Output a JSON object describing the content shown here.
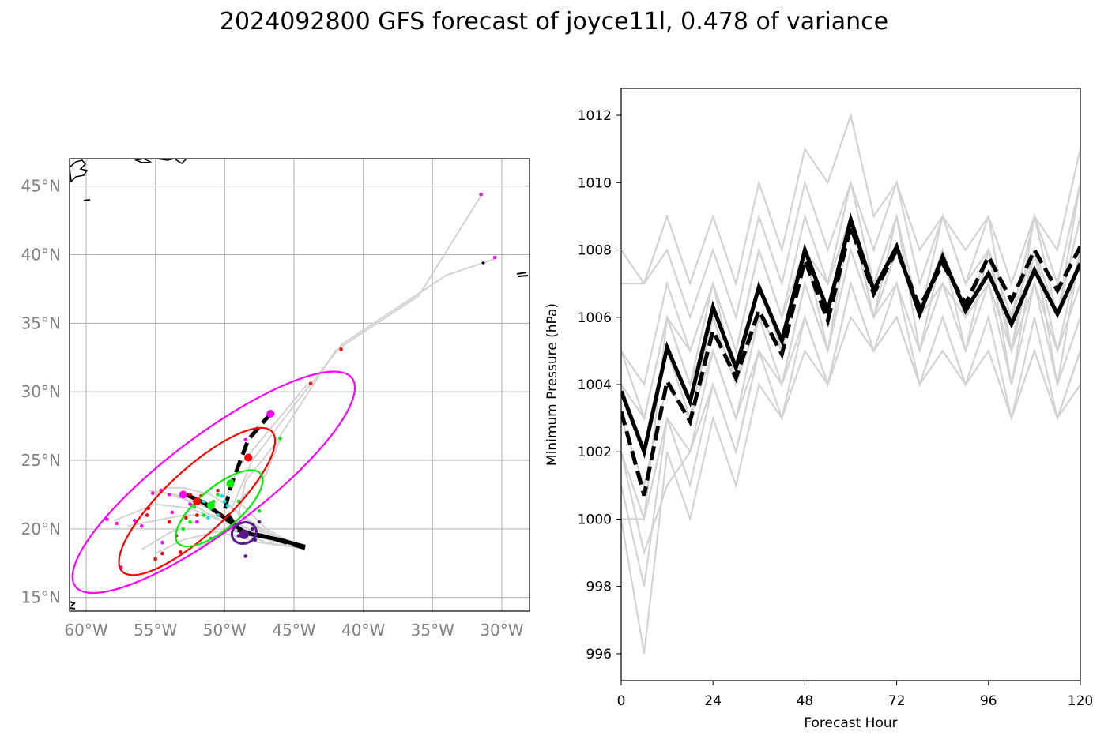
{
  "figure": {
    "title": "2024092800 GFS forecast of joyce11l, 0.478 of variance"
  },
  "chart_data": [
    {
      "type": "scatter",
      "panel": "track-map",
      "title": "",
      "xlabel": "",
      "ylabel": "",
      "xlim": [
        -61.2,
        -28.0
      ],
      "ylim": [
        14.0,
        47.0
      ],
      "xticks": [
        -60,
        -55,
        -50,
        -45,
        -40,
        -35,
        -30
      ],
      "xtick_labels": [
        "60°W",
        "55°W",
        "50°W",
        "45°W",
        "40°W",
        "35°W",
        "30°W"
      ],
      "yticks": [
        15,
        20,
        25,
        30,
        35,
        40,
        45
      ],
      "ytick_labels": [
        "15°N",
        "20°N",
        "25°N",
        "30°N",
        "35°N",
        "40°N",
        "45°N"
      ],
      "grid": true,
      "colors": {
        "ensemble": "#d3d3d3",
        "mean_track": "#000000",
        "ellipse_outer": "#ff00ff",
        "ellipse_mid": "#ff0000",
        "ellipse_inner": "#00ee00",
        "ellipse_start": "#5b1a8c",
        "points_cyan": "#00e5e5",
        "grid": "#b0b0b0",
        "tick_text": "#808080"
      },
      "ensemble_tracks": [
        [
          [
            -44.5,
            18.6
          ],
          [
            -47.0,
            19.3
          ],
          [
            -49.5,
            20.6
          ],
          [
            -52.0,
            21.9
          ],
          [
            -54.0,
            22.5
          ]
        ],
        [
          [
            -44.5,
            18.6
          ],
          [
            -47.5,
            19.5
          ],
          [
            -50.0,
            21.0
          ],
          [
            -53.0,
            21.0
          ],
          [
            -55.5,
            20.5
          ],
          [
            -57.0,
            20.2
          ]
        ],
        [
          [
            -44.5,
            18.6
          ],
          [
            -47.0,
            19.8
          ],
          [
            -49.5,
            21.5
          ],
          [
            -51.0,
            22.5
          ],
          [
            -53.0,
            23.0
          ],
          [
            -54.5,
            23.0
          ]
        ],
        [
          [
            -44.5,
            18.6
          ],
          [
            -47.0,
            19.5
          ],
          [
            -49.0,
            21.0
          ],
          [
            -48.5,
            23.5
          ],
          [
            -46.5,
            26.0
          ],
          [
            -42.0,
            33.0
          ],
          [
            -36.0,
            37.0
          ],
          [
            -31.5,
            44.3
          ]
        ],
        [
          [
            -44.5,
            18.6
          ],
          [
            -47.0,
            19.5
          ],
          [
            -49.5,
            21.5
          ],
          [
            -48.0,
            25.0
          ],
          [
            -45.0,
            29.0
          ],
          [
            -41.5,
            33.5
          ],
          [
            -34.0,
            38.5
          ],
          [
            -30.5,
            39.7
          ]
        ],
        [
          [
            -44.5,
            18.6
          ],
          [
            -47.5,
            19.0
          ],
          [
            -50.5,
            19.8
          ],
          [
            -53.0,
            19.2
          ],
          [
            -55.0,
            18.2
          ]
        ],
        [
          [
            -44.5,
            18.6
          ],
          [
            -47.5,
            19.8
          ],
          [
            -50.0,
            20.5
          ],
          [
            -52.5,
            21.5
          ],
          [
            -55.0,
            21.8
          ],
          [
            -58.0,
            20.6
          ]
        ],
        [
          [
            -44.5,
            18.6
          ],
          [
            -47.0,
            20.0
          ],
          [
            -49.0,
            22.0
          ],
          [
            -47.0,
            24.0
          ],
          [
            -46.0,
            26.5
          ]
        ],
        [
          [
            -44.5,
            18.6
          ],
          [
            -47.5,
            19.5
          ],
          [
            -50.5,
            20.0
          ],
          [
            -53.5,
            20.0
          ],
          [
            -56.0,
            18.5
          ]
        ],
        [
          [
            -44.5,
            18.6
          ],
          [
            -48.0,
            19.5
          ],
          [
            -51.0,
            21.0
          ],
          [
            -53.5,
            22.5
          ],
          [
            -55.5,
            22.8
          ]
        ],
        [
          [
            -44.5,
            18.6
          ],
          [
            -47.0,
            19.0
          ],
          [
            -49.5,
            20.0
          ],
          [
            -51.0,
            19.2
          ],
          [
            -52.0,
            18.5
          ]
        ],
        [
          [
            -44.5,
            18.6
          ],
          [
            -47.5,
            20.0
          ],
          [
            -50.0,
            22.0
          ],
          [
            -49.0,
            24.5
          ],
          [
            -44.0,
            30.6
          ]
        ]
      ],
      "mean_tracks": [
        {
          "style": "solid",
          "points": [
            [
              -44.2,
              18.7
            ],
            [
              -46.0,
              19.2
            ],
            [
              -48.5,
              19.7
            ],
            [
              -50.0,
              20.8
            ],
            [
              -51.5,
              21.9
            ],
            [
              -53.0,
              22.6
            ]
          ]
        },
        {
          "style": "dashed",
          "points": [
            [
              -44.2,
              18.6
            ],
            [
              -46.5,
              19.3
            ],
            [
              -49.0,
              19.9
            ],
            [
              -50.0,
              21.4
            ],
            [
              -49.5,
              23.3
            ],
            [
              -48.3,
              26.5
            ],
            [
              -46.7,
              28.4
            ]
          ]
        }
      ],
      "ellipses": [
        {
          "name": "magenta",
          "cx": -50.8,
          "cy": 23.4,
          "rx": 12.5,
          "ry": 3.4,
          "angle": 37
        },
        {
          "name": "red",
          "cx": -52.0,
          "cy": 22.0,
          "rx": 7.4,
          "ry": 2.3,
          "angle": 43
        },
        {
          "name": "green",
          "cx": -50.4,
          "cy": 21.5,
          "rx": 3.9,
          "ry": 1.5,
          "angle": 40
        },
        {
          "name": "purple",
          "cx": -48.6,
          "cy": 19.7,
          "rx": 0.9,
          "ry": 0.75,
          "angle": 20
        }
      ],
      "points": [
        {
          "color": "#ff00ff",
          "coords": [
            [
              -31.5,
              44.4
            ],
            [
              -30.5,
              39.8
            ],
            [
              -58.5,
              20.7
            ],
            [
              -57.5,
              17.2
            ],
            [
              -56.5,
              20.6
            ],
            [
              -54.0,
              22.5
            ],
            [
              -53.0,
              22.5
            ],
            [
              -54.5,
              19.0
            ],
            [
              -52.5,
              21.8
            ],
            [
              -48.5,
              26.5
            ],
            [
              -56.0,
              20.2
            ],
            [
              -55.2,
              22.6
            ],
            [
              -53.8,
              21.2
            ],
            [
              -52.0,
              20.5
            ],
            [
              -54.6,
              22.8
            ],
            [
              -57.8,
              20.4
            ]
          ]
        },
        {
          "color": "#ff0000",
          "coords": [
            [
              -41.6,
              33.1
            ],
            [
              -43.8,
              30.6
            ],
            [
              -55.5,
              21.5
            ],
            [
              -54.0,
              20.5
            ],
            [
              -53.5,
              19.5
            ],
            [
              -52.5,
              22.5
            ],
            [
              -51.0,
              21.5
            ],
            [
              -50.5,
              22.8
            ],
            [
              -55.0,
              17.8
            ],
            [
              -52.0,
              21.0
            ],
            [
              -53.2,
              18.3
            ],
            [
              -51.7,
              22.4
            ],
            [
              -50.4,
              21.0
            ],
            [
              -54.5,
              18.2
            ],
            [
              -52.8,
              20.8
            ],
            [
              -55.6,
              21.0
            ]
          ]
        },
        {
          "color": "#00ee00",
          "coords": [
            [
              -46.0,
              26.6
            ],
            [
              -47.5,
              21.3
            ],
            [
              -51.5,
              21.0
            ],
            [
              -52.5,
              20.5
            ],
            [
              -50.5,
              22.5
            ],
            [
              -49.5,
              23.5
            ],
            [
              -53.0,
              20.0
            ],
            [
              -51.0,
              19.3
            ],
            [
              -49.0,
              22.0
            ],
            [
              -50.8,
              22.0
            ],
            [
              -52.2,
              21.6
            ]
          ]
        },
        {
          "color": "#00e5e5",
          "coords": [
            [
              -50.0,
              22.0
            ],
            [
              -51.0,
              21.5
            ],
            [
              -51.5,
              22.0
            ],
            [
              -50.5,
              21.0
            ],
            [
              -49.8,
              21.7
            ],
            [
              -51.2,
              20.8
            ],
            [
              -50.2,
              22.4
            ]
          ]
        },
        {
          "color": "#5b1a8c",
          "coords": [
            [
              -47.5,
              20.5
            ],
            [
              -48.0,
              20.0
            ],
            [
              -49.0,
              19.5
            ],
            [
              -48.5,
              18.0
            ],
            [
              -49.4,
              20.2
            ],
            [
              -47.8,
              19.2
            ]
          ]
        }
      ]
    },
    {
      "type": "line",
      "panel": "pressure",
      "title": "",
      "xlabel": "Forecast Hour",
      "ylabel": "Minimum Pressure (hPa)",
      "xlim": [
        0,
        120
      ],
      "ylim": [
        995.2,
        1012.8
      ],
      "xticks": [
        0,
        24,
        48,
        72,
        96,
        120
      ],
      "yticks": [
        996,
        998,
        1000,
        1002,
        1004,
        1006,
        1008,
        1010,
        1012
      ],
      "x": [
        0,
        6,
        12,
        18,
        24,
        30,
        36,
        42,
        48,
        54,
        60,
        66,
        72,
        78,
        84,
        90,
        96,
        102,
        108,
        114,
        120
      ],
      "ensemble": [
        [
          1007,
          1007,
          1009,
          1007,
          1009,
          1007,
          1010,
          1008,
          1011,
          1010,
          1012,
          1009,
          1010,
          1008,
          1009,
          1008,
          1009,
          1007,
          1009,
          1008,
          1011
        ],
        [
          1008,
          1007,
          1008,
          1006,
          1008,
          1006,
          1009,
          1007,
          1010,
          1008,
          1010,
          1008,
          1010,
          1007,
          1009,
          1007,
          1008,
          1006,
          1009,
          1007,
          1010
        ],
        [
          1005,
          1004,
          1007,
          1005,
          1007,
          1005,
          1008,
          1006,
          1009,
          1007,
          1009,
          1007,
          1009,
          1006,
          1008,
          1006,
          1008,
          1006,
          1008,
          1006,
          1009
        ],
        [
          1004,
          1003,
          1006,
          1004,
          1006,
          1004,
          1007,
          1005,
          1008,
          1006,
          1009,
          1006,
          1008,
          1006,
          1008,
          1006,
          1007,
          1005,
          1008,
          1005,
          1008
        ],
        [
          1004,
          1002,
          1005,
          1003,
          1006,
          1004,
          1006,
          1005,
          1008,
          1005,
          1008,
          1006,
          1008,
          1006,
          1007,
          1006,
          1007,
          1005,
          1007,
          1005,
          1007
        ],
        [
          1003,
          1001,
          1004,
          1003,
          1005,
          1003,
          1006,
          1004,
          1007,
          1005,
          1008,
          1006,
          1007,
          1005,
          1007,
          1005,
          1007,
          1004,
          1007,
          1004,
          1006
        ],
        [
          1002,
          1000,
          1003,
          1002,
          1005,
          1003,
          1005,
          1004,
          1006,
          1004,
          1007,
          1005,
          1007,
          1004,
          1006,
          1004,
          1006,
          1003,
          1006,
          1003,
          1005
        ],
        [
          1001,
          998,
          1003,
          1001,
          1004,
          1002,
          1005,
          1003,
          1006,
          1004,
          1007,
          1005,
          1006,
          1004,
          1006,
          1004,
          1005,
          1003,
          1005,
          1003,
          1005
        ],
        [
          1000,
          996,
          1002,
          1000,
          1003,
          1001,
          1004,
          1003,
          1005,
          1004,
          1006,
          1005,
          1006,
          1004,
          1005,
          1004,
          1005,
          1003,
          1005,
          1003,
          1004
        ],
        [
          1002,
          999,
          1001,
          1002,
          1004,
          1002,
          1005,
          1004,
          1007,
          1005,
          1009,
          1006,
          1009,
          1005,
          1008,
          1005,
          1008,
          1004,
          1008,
          1004,
          1008
        ],
        [
          1000,
          1000,
          1006,
          1005,
          1007,
          1005,
          1008,
          1006,
          1008,
          1007,
          1010,
          1007,
          1009,
          1006,
          1009,
          1007,
          1009,
          1005,
          1009,
          1006,
          1010
        ],
        [
          1005,
          1003,
          1006,
          1004,
          1007,
          1004,
          1007,
          1005,
          1008,
          1006,
          1009,
          1007,
          1008,
          1006,
          1008,
          1006,
          1008,
          1005,
          1008,
          1006,
          1009
        ]
      ],
      "mean_solid": [
        1003.8,
        1002.0,
        1005.1,
        1003.5,
        1006.3,
        1004.5,
        1006.9,
        1005.3,
        1008.0,
        1006.2,
        1008.9,
        1006.8,
        1008.1,
        1006.1,
        1007.8,
        1006.2,
        1007.3,
        1005.8,
        1007.4,
        1006.1,
        1007.6
      ],
      "mean_dashed": [
        1003.2,
        1000.7,
        1004.1,
        1002.9,
        1005.6,
        1004.2,
        1006.2,
        1004.9,
        1007.7,
        1005.9,
        1008.7,
        1006.7,
        1008.0,
        1006.3,
        1007.6,
        1006.4,
        1007.8,
        1006.5,
        1008.0,
        1006.8,
        1008.1
      ],
      "colors": {
        "ensemble": "#d3d3d3",
        "mean": "#000000"
      }
    }
  ]
}
